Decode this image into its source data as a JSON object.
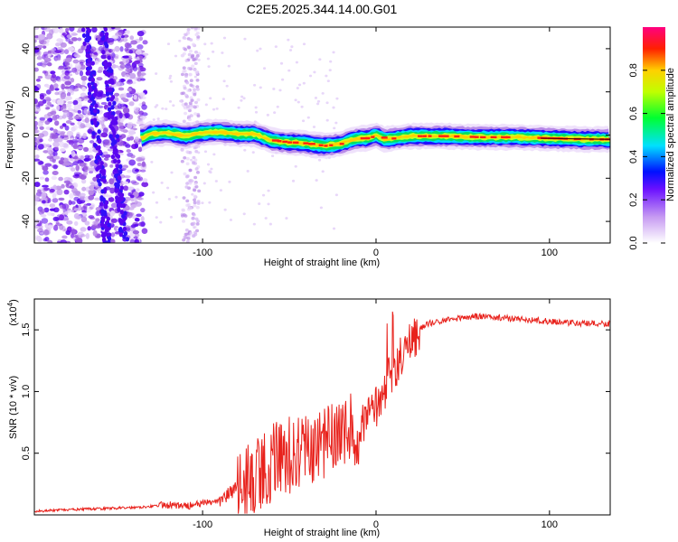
{
  "title": "C2E5.2025.344.14.00.G01",
  "chart_data": [
    {
      "type": "heatmap",
      "name": "spectrogram",
      "xlabel": "Height of straight line (km)",
      "ylabel": "Frequency (Hz)",
      "xlim": [
        -197,
        135
      ],
      "ylim": [
        -50,
        50
      ],
      "xticks": [
        -100,
        0,
        100
      ],
      "yticks": [
        -40,
        -20,
        0,
        20,
        40
      ],
      "xtick_labels": [
        "-100",
        "0",
        "100"
      ],
      "ytick_labels": [
        "-40",
        "-20",
        "0",
        "20",
        "40"
      ],
      "ridge": {
        "x": [
          -135,
          -130,
          -120,
          -110,
          -100,
          -90,
          -80,
          -70,
          -65,
          -60,
          -55,
          -50,
          -45,
          -40,
          -35,
          -30,
          -25,
          -20,
          -15,
          -10,
          -5,
          0,
          5,
          10,
          20,
          30,
          40,
          60,
          80,
          100,
          120,
          135
        ],
        "freq": [
          -1.5,
          0.5,
          1,
          -0.5,
          1,
          1.5,
          0.5,
          0.5,
          -1,
          -2.5,
          -3,
          -3.5,
          -3.5,
          -4,
          -4.5,
          -5,
          -4.5,
          -4,
          -2.5,
          -1.5,
          -1.5,
          0,
          -2,
          -1.5,
          -0.5,
          -0.5,
          -0.5,
          -1,
          -1,
          -1.5,
          -2,
          -2
        ]
      },
      "colorbar": {
        "label": "Normalized spectral amplitude",
        "range": [
          0,
          1
        ],
        "ticks": [
          0.0,
          0.2,
          0.4,
          0.6,
          0.8
        ],
        "tick_labels": [
          "0.0",
          "0.2",
          "0.4",
          "0.6",
          "0.8"
        ]
      }
    },
    {
      "type": "line",
      "name": "snr",
      "xlabel": "Height of straight line (km)",
      "ylabel": "SNR (10 * v/v)",
      "scale_label": "(x10",
      "scale_exp": "4",
      "scale_close": ")",
      "xlim": [
        -197,
        135
      ],
      "ylim": [
        0,
        1.75
      ],
      "xticks": [
        -100,
        0,
        100
      ],
      "yticks": [
        0.5,
        1.0,
        1.5
      ],
      "xtick_labels": [
        "-100",
        "0",
        "100"
      ],
      "ytick_labels": [
        "0.5",
        "1.0",
        "1.5"
      ],
      "color": "#e8221c",
      "series": [
        {
          "name": "SNR",
          "x": [
            -197,
            -180,
            -160,
            -140,
            -120,
            -110,
            -100,
            -90,
            -80,
            -70,
            -60,
            -50,
            -40,
            -30,
            -20,
            -10,
            0,
            5,
            10,
            15,
            20,
            25,
            30,
            40,
            50,
            60,
            70,
            80,
            90,
            100,
            110,
            120,
            135
          ],
          "y": [
            0.03,
            0.04,
            0.05,
            0.06,
            0.08,
            0.07,
            0.09,
            0.12,
            0.22,
            0.32,
            0.42,
            0.48,
            0.52,
            0.56,
            0.62,
            0.72,
            0.88,
            1.02,
            1.15,
            1.3,
            1.42,
            1.5,
            1.55,
            1.58,
            1.6,
            1.61,
            1.6,
            1.59,
            1.58,
            1.57,
            1.56,
            1.55,
            1.55
          ]
        }
      ]
    }
  ]
}
